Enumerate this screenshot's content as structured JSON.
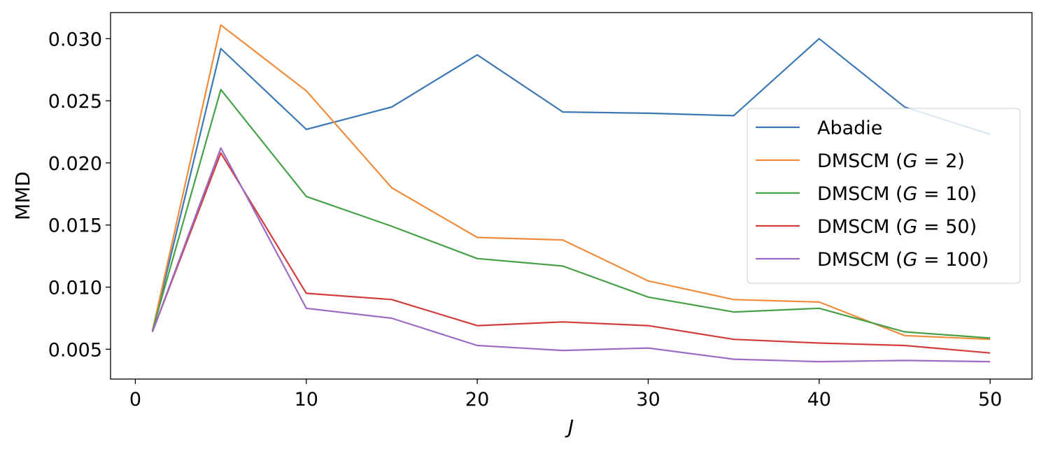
{
  "chart_data": {
    "type": "line",
    "xlabel": "J",
    "ylabel": "MMD",
    "xlim": [
      -1.45,
      52.45
    ],
    "ylim": [
      0.0026,
      0.0321
    ],
    "xticks": [
      0,
      10,
      20,
      30,
      40,
      50
    ],
    "xtick_labels": [
      "0",
      "10",
      "20",
      "30",
      "40",
      "50"
    ],
    "yticks": [
      0.005,
      0.01,
      0.015,
      0.02,
      0.025,
      0.03
    ],
    "ytick_labels": [
      "0.005",
      "0.010",
      "0.015",
      "0.020",
      "0.025",
      "0.030"
    ],
    "grid": false,
    "legend_position": "center-right",
    "x": [
      1,
      5,
      10,
      15,
      20,
      25,
      30,
      35,
      40,
      45,
      50
    ],
    "series": [
      {
        "name": "Abadie",
        "legend_prefix": "Abadie",
        "legend_var": "",
        "legend_value": "",
        "color": "#3c78b4",
        "values": [
          0.0064,
          0.0292,
          0.0227,
          0.0245,
          0.0287,
          0.0241,
          0.024,
          0.0238,
          0.03,
          0.0245,
          0.0223
        ]
      },
      {
        "name": "DMSCM (G = 2)",
        "legend_prefix": "DMSCM (",
        "legend_var": "G",
        "legend_value": " = 2)",
        "color": "#f08c3c",
        "values": [
          0.0065,
          0.0311,
          0.0258,
          0.018,
          0.014,
          0.0138,
          0.0105,
          0.009,
          0.0088,
          0.0061,
          0.0058
        ]
      },
      {
        "name": "DMSCM (G = 10)",
        "legend_prefix": "DMSCM (",
        "legend_var": "G",
        "legend_value": " = 10)",
        "color": "#46a046",
        "values": [
          0.0065,
          0.0259,
          0.0173,
          0.0149,
          0.0123,
          0.0117,
          0.0092,
          0.008,
          0.0083,
          0.0064,
          0.0059
        ]
      },
      {
        "name": "DMSCM (G = 50)",
        "legend_prefix": "DMSCM (",
        "legend_var": "G",
        "legend_value": " = 50)",
        "color": "#d23c3c",
        "values": [
          0.0064,
          0.0208,
          0.0095,
          0.009,
          0.0069,
          0.0072,
          0.0069,
          0.0058,
          0.0055,
          0.0053,
          0.0047
        ]
      },
      {
        "name": "DMSCM (G = 100)",
        "legend_prefix": "DMSCM (",
        "legend_var": "G",
        "legend_value": " = 100)",
        "color": "#9a6cc4",
        "values": [
          0.0064,
          0.0212,
          0.0083,
          0.0075,
          0.0053,
          0.0049,
          0.0051,
          0.0042,
          0.004,
          0.0041,
          0.004
        ]
      }
    ]
  }
}
